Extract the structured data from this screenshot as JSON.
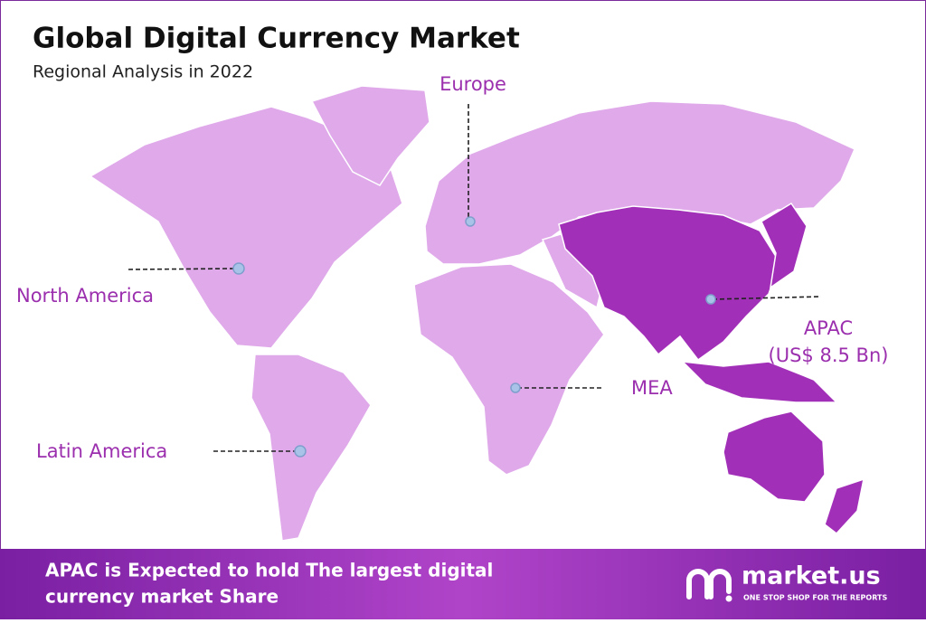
{
  "header": {
    "title": "Global Digital Currency Market",
    "subtitle": "Regional Analysis in 2022"
  },
  "regions": [
    {
      "label": "Europe"
    },
    {
      "label": "North America"
    },
    {
      "label": "Latin America"
    },
    {
      "label": "MEA"
    },
    {
      "label": "APAC",
      "detail": "(US$ 8.5 Bn)"
    }
  ],
  "footer": {
    "lines": [
      "APAC is Expected to hold The largest digital",
      "currency market Share"
    ],
    "brand": "market.us",
    "tagline": "ONE STOP SHOP FOR THE REPORTS"
  }
}
